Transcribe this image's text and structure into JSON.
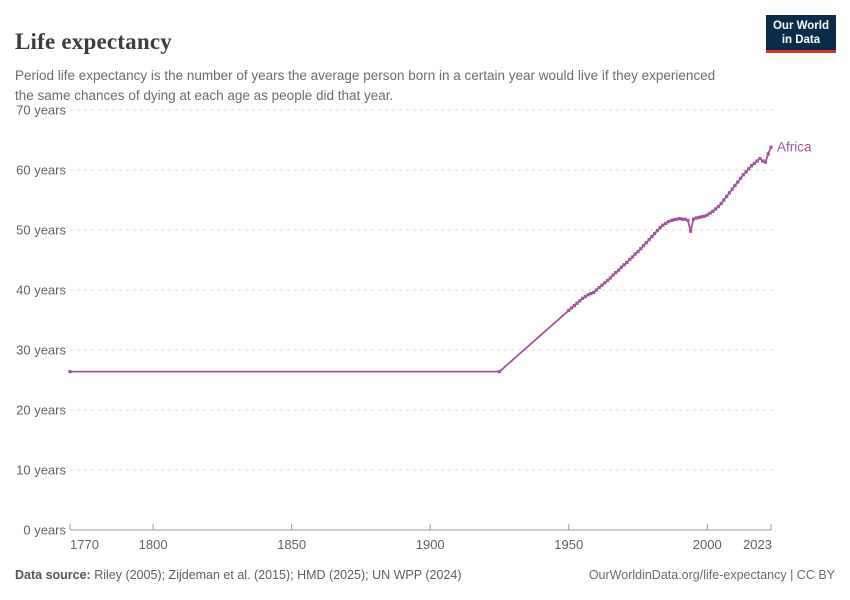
{
  "header": {
    "title": "Life expectancy",
    "subtitle": "Period life expectancy is the number of years the average person born in a certain year would live if they experienced the same chances of dying at each age as people did that year.",
    "logo": {
      "line1": "Our World",
      "line2": "in Data"
    }
  },
  "chart_data": {
    "type": "line",
    "title": "Life expectancy",
    "xlabel": "",
    "ylabel": "",
    "xlim": [
      1770,
      2023
    ],
    "ylim": [
      0,
      70
    ],
    "x_ticks": [
      1770,
      1800,
      1850,
      1900,
      1950,
      2000,
      2023
    ],
    "y_ticks": [
      0,
      10,
      20,
      30,
      40,
      50,
      60,
      70
    ],
    "y_tick_suffix": " years",
    "grid": "horizontal-dashed",
    "legend_position": "end-of-line-label",
    "series": [
      {
        "name": "Africa",
        "color": "#a2559c",
        "points": [
          [
            1770,
            26.4
          ],
          [
            1925,
            26.4
          ],
          [
            1950,
            36.6
          ],
          [
            1951,
            37.0
          ],
          [
            1952,
            37.4
          ],
          [
            1953,
            37.8
          ],
          [
            1954,
            38.2
          ],
          [
            1955,
            38.6
          ],
          [
            1956,
            38.9
          ],
          [
            1957,
            39.2
          ],
          [
            1958,
            39.4
          ],
          [
            1959,
            39.6
          ],
          [
            1960,
            40.0
          ],
          [
            1961,
            40.4
          ],
          [
            1962,
            40.8
          ],
          [
            1963,
            41.2
          ],
          [
            1964,
            41.6
          ],
          [
            1965,
            42.0
          ],
          [
            1966,
            42.5
          ],
          [
            1967,
            42.9
          ],
          [
            1968,
            43.3
          ],
          [
            1969,
            43.8
          ],
          [
            1970,
            44.2
          ],
          [
            1971,
            44.6
          ],
          [
            1972,
            45.1
          ],
          [
            1973,
            45.5
          ],
          [
            1974,
            46.0
          ],
          [
            1975,
            46.4
          ],
          [
            1976,
            46.9
          ],
          [
            1977,
            47.4
          ],
          [
            1978,
            47.9
          ],
          [
            1979,
            48.4
          ],
          [
            1980,
            48.9
          ],
          [
            1981,
            49.4
          ],
          [
            1982,
            49.9
          ],
          [
            1983,
            50.4
          ],
          [
            1984,
            50.8
          ],
          [
            1985,
            51.1
          ],
          [
            1986,
            51.4
          ],
          [
            1987,
            51.6
          ],
          [
            1988,
            51.7
          ],
          [
            1989,
            51.8
          ],
          [
            1990,
            51.9
          ],
          [
            1991,
            51.8
          ],
          [
            1992,
            51.8
          ],
          [
            1993,
            51.6
          ],
          [
            1994,
            49.8
          ],
          [
            1995,
            51.8
          ],
          [
            1996,
            52.0
          ],
          [
            1997,
            52.1
          ],
          [
            1998,
            52.2
          ],
          [
            1999,
            52.3
          ],
          [
            2000,
            52.5
          ],
          [
            2001,
            52.8
          ],
          [
            2002,
            53.1
          ],
          [
            2003,
            53.5
          ],
          [
            2004,
            53.9
          ],
          [
            2005,
            54.4
          ],
          [
            2006,
            55.0
          ],
          [
            2007,
            55.6
          ],
          [
            2008,
            56.2
          ],
          [
            2009,
            56.8
          ],
          [
            2010,
            57.4
          ],
          [
            2011,
            58.0
          ],
          [
            2012,
            58.6
          ],
          [
            2013,
            59.2
          ],
          [
            2014,
            59.7
          ],
          [
            2015,
            60.2
          ],
          [
            2016,
            60.7
          ],
          [
            2017,
            61.1
          ],
          [
            2018,
            61.5
          ],
          [
            2019,
            61.9
          ],
          [
            2020,
            61.5
          ],
          [
            2021,
            61.3
          ],
          [
            2022,
            62.7
          ],
          [
            2023,
            63.8
          ]
        ]
      }
    ]
  },
  "footer": {
    "source_label": "Data source:",
    "source_text": "Riley (2005); Zijdeman et al. (2015); HMD (2025); UN WPP (2024)",
    "credit": "OurWorldinData.org/life-expectancy | CC BY"
  },
  "colors": {
    "series_africa": "#a2559c",
    "logo_bg": "#0b2b4b",
    "logo_accent": "#dc3323",
    "gridline": "#d9d9d9",
    "axis": "#9c9c9c",
    "tick_label": "#636363"
  }
}
